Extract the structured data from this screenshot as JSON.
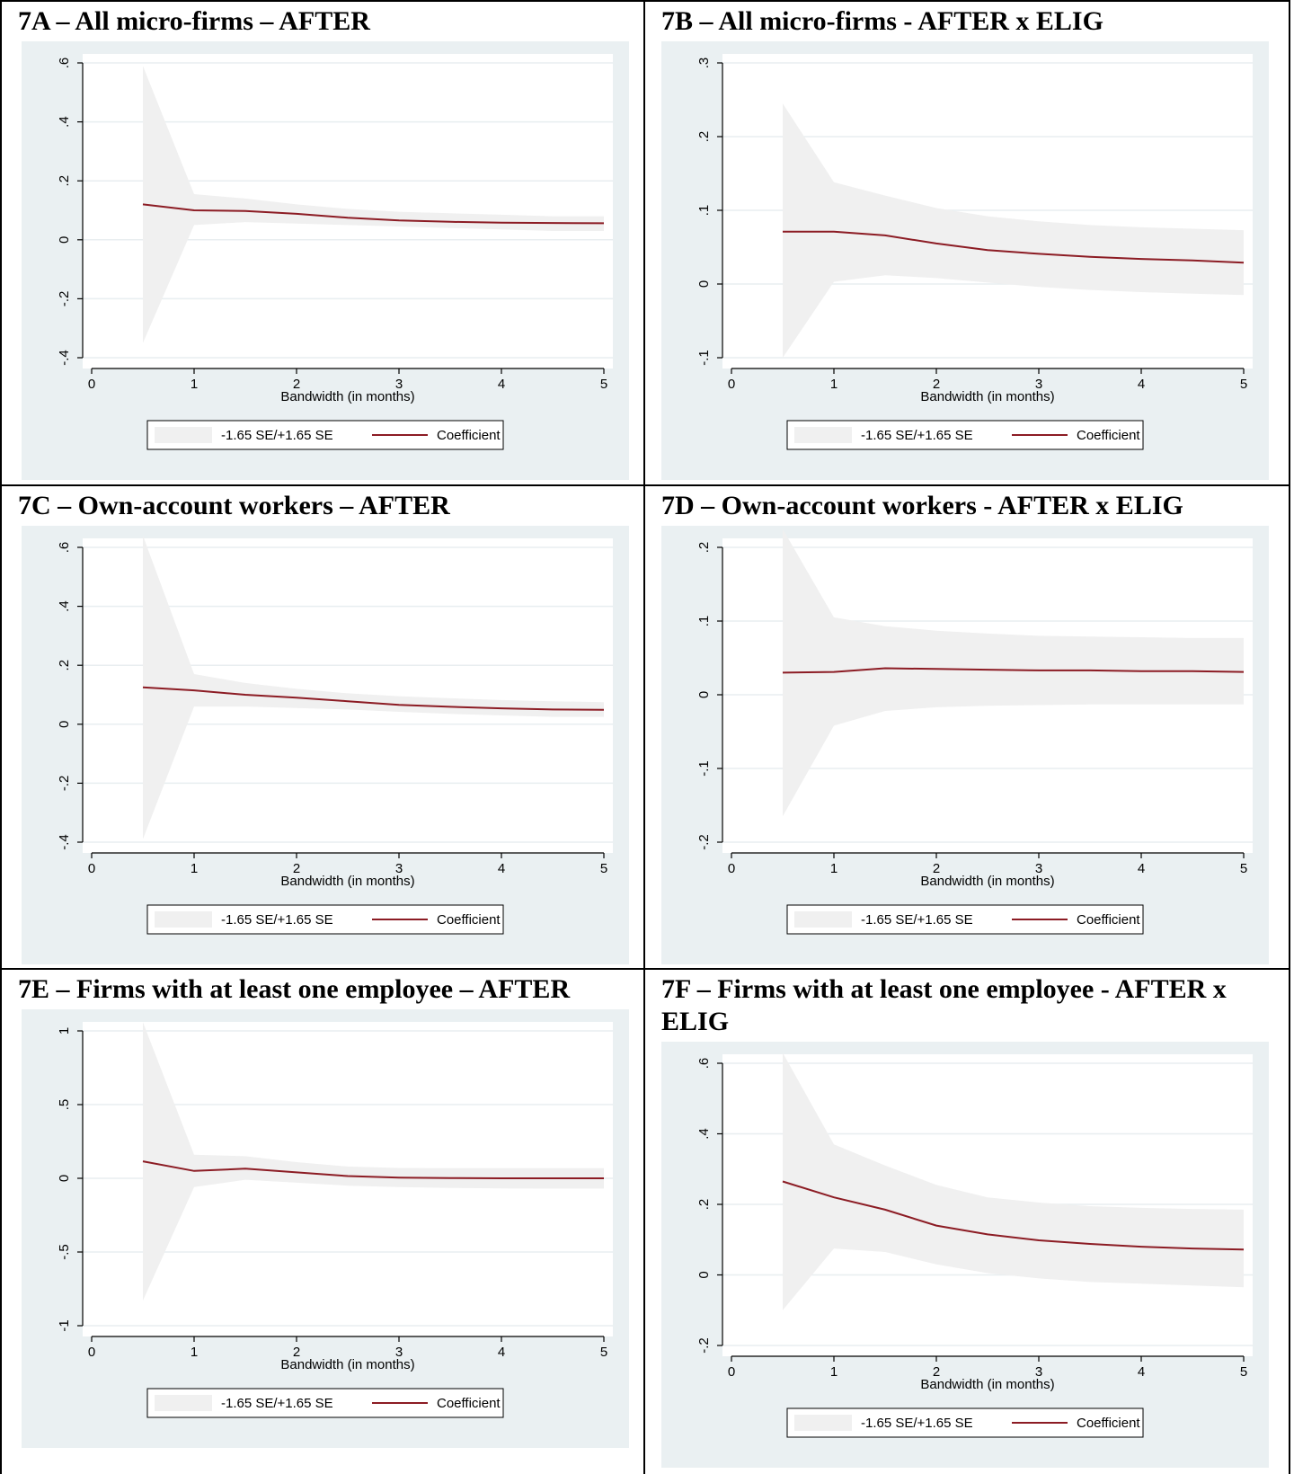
{
  "panels": [
    {
      "title": "7A – All micro-firms – AFTER",
      "chart_data": {
        "type": "area",
        "xlabel": "Bandwidth (in months)",
        "xlim": [
          0,
          5
        ],
        "xticks": [
          "0",
          "1",
          "2",
          "3",
          "4",
          "5"
        ],
        "ylim": [
          -0.4,
          0.6
        ],
        "yticks": [
          -0.4,
          -0.2,
          0,
          0.2,
          0.4,
          0.6
        ],
        "ytick_labels": [
          "-.4",
          "-.2",
          "0",
          ".2",
          ".4",
          ".6"
        ],
        "x": [
          0.5,
          1,
          1.5,
          2,
          2.5,
          3,
          3.5,
          4,
          4.5,
          5
        ],
        "series": [
          {
            "name": "-1.65 SE/+1.65 SE",
            "kind": "band",
            "lower": [
              -0.35,
              0.05,
              0.06,
              0.055,
              0.05,
              0.045,
              0.04,
              0.035,
              0.03,
              0.03
            ],
            "upper": [
              0.59,
              0.155,
              0.14,
              0.12,
              0.105,
              0.095,
              0.09,
              0.085,
              0.08,
              0.08
            ]
          },
          {
            "name": "Coefficient",
            "kind": "line",
            "values": [
              0.12,
              0.1,
              0.098,
              0.088,
              0.075,
              0.066,
              0.061,
              0.058,
              0.057,
              0.056
            ]
          }
        ],
        "legend": "bottom",
        "grid": true
      }
    },
    {
      "title": "7B – All micro-firms - AFTER x ELIG",
      "chart_data": {
        "type": "area",
        "xlabel": "Bandwidth (in months)",
        "xlim": [
          0,
          5
        ],
        "xticks": [
          "0",
          "1",
          "2",
          "3",
          "4",
          "5"
        ],
        "ylim": [
          -0.1,
          0.3
        ],
        "yticks": [
          -0.1,
          0,
          0.1,
          0.2,
          0.3
        ],
        "ytick_labels": [
          "-.1",
          "0",
          ".1",
          ".2",
          ".3"
        ],
        "x": [
          0.5,
          1,
          1.5,
          2,
          2.5,
          3,
          3.5,
          4,
          4.5,
          5
        ],
        "series": [
          {
            "name": "-1.65 SE/+1.65 SE",
            "kind": "band",
            "lower": [
              -0.1,
              0.003,
              0.012,
              0.008,
              0.002,
              -0.004,
              -0.008,
              -0.011,
              -0.013,
              -0.015
            ],
            "upper": [
              0.245,
              0.138,
              0.12,
              0.103,
              0.092,
              0.085,
              0.08,
              0.077,
              0.075,
              0.073
            ]
          },
          {
            "name": "Coefficient",
            "kind": "line",
            "values": [
              0.071,
              0.071,
              0.066,
              0.055,
              0.046,
              0.041,
              0.037,
              0.034,
              0.032,
              0.029
            ]
          }
        ],
        "legend": "bottom",
        "grid": true
      }
    },
    {
      "title": "7C – Own-account workers – AFTER",
      "chart_data": {
        "type": "area",
        "xlabel": "Bandwidth (in months)",
        "xlim": [
          0,
          5
        ],
        "xticks": [
          "0",
          "1",
          "2",
          "3",
          "4",
          "5"
        ],
        "ylim": [
          -0.4,
          0.6
        ],
        "yticks": [
          -0.4,
          -0.2,
          0,
          0.2,
          0.4,
          0.6
        ],
        "ytick_labels": [
          "-.4",
          "-.2",
          "0",
          ".2",
          ".4",
          ".6"
        ],
        "x": [
          0.5,
          1,
          1.5,
          2,
          2.5,
          3,
          3.5,
          4,
          4.5,
          5
        ],
        "series": [
          {
            "name": "-1.65 SE/+1.65 SE",
            "kind": "band",
            "lower": [
              -0.39,
              0.06,
              0.06,
              0.055,
              0.05,
              0.042,
              0.035,
              0.03,
              0.025,
              0.025
            ],
            "upper": [
              0.64,
              0.17,
              0.14,
              0.12,
              0.105,
              0.095,
              0.088,
              0.082,
              0.078,
              0.075
            ]
          },
          {
            "name": "Coefficient",
            "kind": "line",
            "values": [
              0.125,
              0.115,
              0.1,
              0.09,
              0.078,
              0.066,
              0.059,
              0.054,
              0.05,
              0.049
            ]
          }
        ],
        "legend": "bottom",
        "grid": true
      }
    },
    {
      "title": "7D – Own-account workers - AFTER x ELIG",
      "chart_data": {
        "type": "area",
        "xlabel": "Bandwidth (in months)",
        "xlim": [
          0,
          5
        ],
        "xticks": [
          "0",
          "1",
          "2",
          "3",
          "4",
          "5"
        ],
        "ylim": [
          -0.2,
          0.2
        ],
        "yticks": [
          -0.2,
          -0.1,
          0,
          0.1,
          0.2
        ],
        "ytick_labels": [
          "-.2",
          "-.1",
          "0",
          ".1",
          ".2"
        ],
        "x": [
          0.5,
          1,
          1.5,
          2,
          2.5,
          3,
          3.5,
          4,
          4.5,
          5
        ],
        "series": [
          {
            "name": "-1.65 SE/+1.65 SE",
            "kind": "band",
            "lower": [
              -0.165,
              -0.042,
              -0.022,
              -0.017,
              -0.015,
              -0.014,
              -0.013,
              -0.013,
              -0.013,
              -0.013
            ],
            "upper": [
              0.225,
              0.105,
              0.093,
              0.087,
              0.083,
              0.08,
              0.079,
              0.078,
              0.077,
              0.077
            ]
          },
          {
            "name": "Coefficient",
            "kind": "line",
            "values": [
              0.03,
              0.031,
              0.036,
              0.035,
              0.034,
              0.033,
              0.033,
              0.032,
              0.032,
              0.031
            ]
          }
        ],
        "legend": "bottom",
        "grid": true
      }
    },
    {
      "title": "7E – Firms with at least one employee – AFTER",
      "chart_data": {
        "type": "area",
        "xlabel": "Bandwidth (in months)",
        "xlim": [
          0,
          5
        ],
        "xticks": [
          "0",
          "1",
          "2",
          "3",
          "4",
          "5"
        ],
        "ylim": [
          -1,
          1
        ],
        "yticks": [
          -1,
          -0.5,
          0,
          0.5,
          1
        ],
        "ytick_labels": [
          "-1",
          "-.5",
          "0",
          ".5",
          "1"
        ],
        "x": [
          0.5,
          1,
          1.5,
          2,
          2.5,
          3,
          3.5,
          4,
          4.5,
          5
        ],
        "series": [
          {
            "name": "-1.65 SE/+1.65 SE",
            "kind": "band",
            "lower": [
              -0.83,
              -0.06,
              -0.01,
              -0.03,
              -0.05,
              -0.06,
              -0.065,
              -0.068,
              -0.07,
              -0.07
            ],
            "upper": [
              1.06,
              0.16,
              0.15,
              0.11,
              0.08,
              0.07,
              0.068,
              0.068,
              0.068,
              0.068
            ]
          },
          {
            "name": "Coefficient",
            "kind": "line",
            "values": [
              0.115,
              0.05,
              0.065,
              0.04,
              0.015,
              0.005,
              0.002,
              0.0,
              0.0,
              0.0
            ]
          }
        ],
        "legend": "bottom",
        "grid": true
      }
    },
    {
      "title": "7F – Firms with at least one employee - AFTER x ELIG",
      "chart_data": {
        "type": "area",
        "xlabel": "Bandwidth (in months)",
        "xlim": [
          0,
          5
        ],
        "xticks": [
          "0",
          "1",
          "2",
          "3",
          "4",
          "5"
        ],
        "ylim": [
          -0.2,
          0.6
        ],
        "yticks": [
          -0.2,
          0,
          0.2,
          0.4,
          0.6
        ],
        "ytick_labels": [
          "-.2",
          "0",
          ".2",
          ".4",
          ".6"
        ],
        "x": [
          0.5,
          1,
          1.5,
          2,
          2.5,
          3,
          3.5,
          4,
          4.5,
          5
        ],
        "series": [
          {
            "name": "-1.65 SE/+1.65 SE",
            "kind": "band",
            "lower": [
              -0.1,
              0.075,
              0.065,
              0.03,
              0.005,
              -0.01,
              -0.02,
              -0.025,
              -0.03,
              -0.035
            ],
            "upper": [
              0.63,
              0.37,
              0.31,
              0.255,
              0.22,
              0.205,
              0.195,
              0.19,
              0.187,
              0.185
            ]
          },
          {
            "name": "Coefficient",
            "kind": "line",
            "values": [
              0.265,
              0.22,
              0.185,
              0.14,
              0.115,
              0.098,
              0.088,
              0.08,
              0.075,
              0.072
            ]
          }
        ],
        "legend": "bottom",
        "grid": true
      }
    }
  ],
  "colors": {
    "panel_bg": "#eaf0f2",
    "plot_bg": "#ffffff",
    "band": "#f0f0f0",
    "line": "#8c1c24",
    "grid": "#e8eef0",
    "axis": "#000000"
  }
}
